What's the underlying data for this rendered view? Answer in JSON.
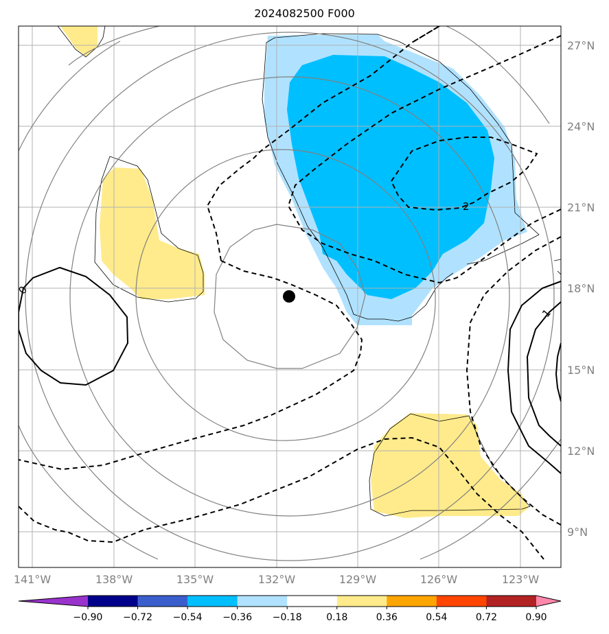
{
  "title": "2024082500 F000",
  "lon_labels": [
    "141°W",
    "138°W",
    "135°W",
    "132°W",
    "129°W",
    "126°W",
    "123°W"
  ],
  "lat_labels": [
    "27°N",
    "24°N",
    "21°N",
    "18°N",
    "15°N",
    "12°N",
    "9°N"
  ],
  "colorbar": {
    "ticks": [
      "−0.90",
      "−0.72",
      "−0.54",
      "−0.36",
      "−0.18",
      "0.18",
      "0.36",
      "0.54",
      "0.72",
      "0.90"
    ],
    "colors": [
      "#9933cc",
      "#00008b",
      "#3a5fcd",
      "#00bfff",
      "#b0e2ff",
      "#ffffff",
      "#ffeb8b",
      "#ffa500",
      "#ff4500",
      "#b22222",
      "#ff88aa"
    ]
  },
  "contour_labels": {
    "dashed": "2",
    "solid_right": "1",
    "solid_left": "0"
  },
  "marker": "storm-center-dot",
  "colors": {
    "positive_fill": "#ffeb8b",
    "neg_light": "#b0e2ff",
    "neg_strong": "#00bfff",
    "grid": "#b0b0b0",
    "circles": "#808080"
  }
}
